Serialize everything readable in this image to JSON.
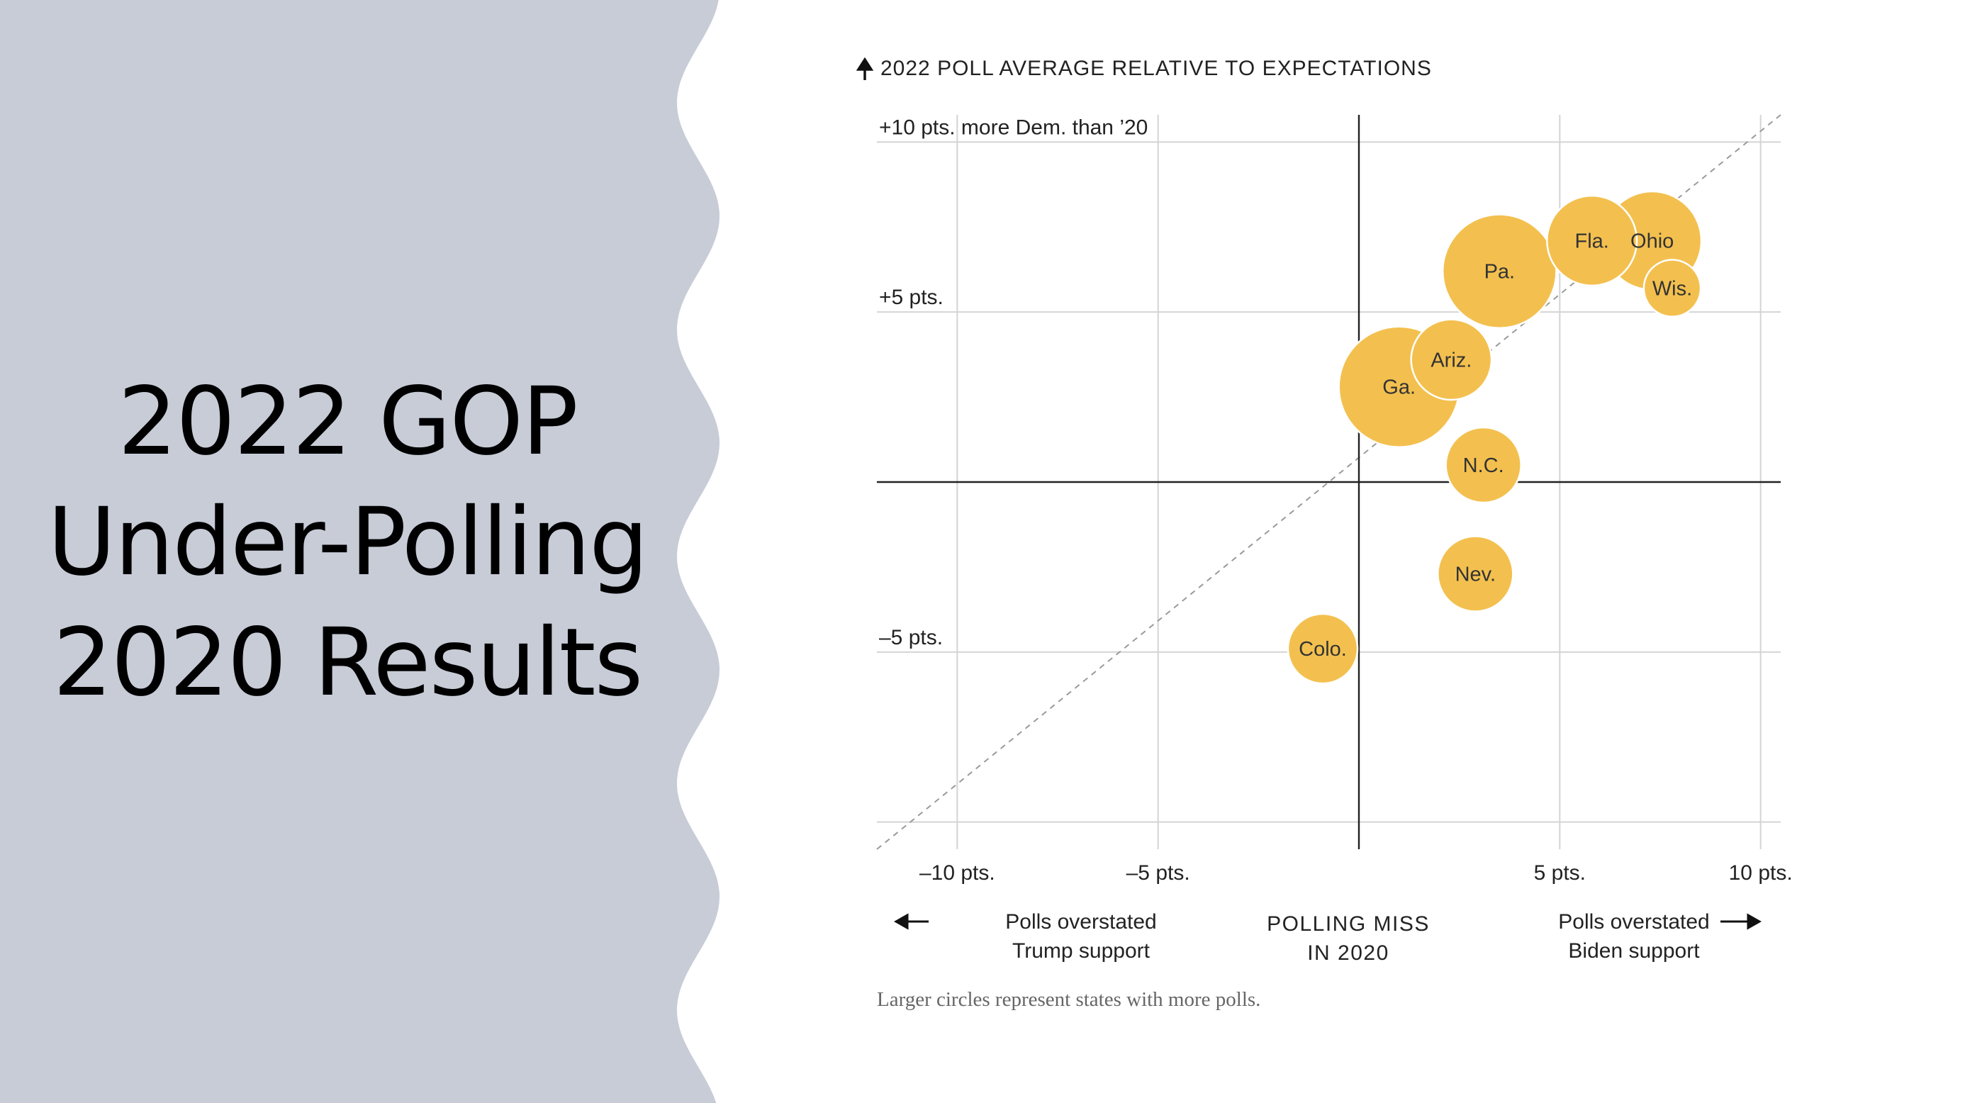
{
  "slide": {
    "title_lines": [
      "2022 GOP",
      "Under-Polling",
      "2020 Results"
    ],
    "panel_color": "#c7ccd7"
  },
  "chart_data": {
    "type": "scatter",
    "title": "2022 POLL AVERAGE RELATIVE TO EXPECTATIONS",
    "xlabel": "POLLING MISS IN 2020",
    "xlabel_lines": [
      "POLLING MISS",
      "IN 2020"
    ],
    "x_annotations": {
      "left": [
        "Polls overstated",
        "Trump support"
      ],
      "right": [
        "Polls overstated",
        "Biden support"
      ]
    },
    "xlim": [
      -12,
      10.5
    ],
    "ylim": [
      -10.8,
      10.8
    ],
    "x_ticks": [
      {
        "value": -10,
        "label": "–10 pts."
      },
      {
        "value": -5,
        "label": "–5 pts."
      },
      {
        "value": 5,
        "label": "5 pts."
      },
      {
        "value": 10,
        "label": "10 pts."
      }
    ],
    "y_ticks": [
      {
        "value": 10,
        "label": "+10 pts. more Dem. than ’20"
      },
      {
        "value": 5,
        "label": "+5 pts."
      },
      {
        "value": -5,
        "label": "–5 pts."
      },
      {
        "value": -10,
        "label": ""
      }
    ],
    "grid": true,
    "reference_line": "y = x",
    "bubble_color": "#f3c04f",
    "points": [
      {
        "label": "Ariz.",
        "x": 2.3,
        "y": 3.6,
        "size": 4
      },
      {
        "label": "Ga.",
        "x": 1.0,
        "y": 2.8,
        "size": 9
      },
      {
        "label": "Pa.",
        "x": 3.5,
        "y": 6.2,
        "size": 8
      },
      {
        "label": "Fla.",
        "x": 5.8,
        "y": 7.1,
        "size": 5
      },
      {
        "label": "Ohio",
        "x": 7.3,
        "y": 7.1,
        "size": 6
      },
      {
        "label": "Wis.",
        "x": 7.8,
        "y": 5.7,
        "size": 2
      },
      {
        "label": "N.C.",
        "x": 3.1,
        "y": 0.5,
        "size": 3.5
      },
      {
        "label": "Nev.",
        "x": 2.9,
        "y": -2.7,
        "size": 3.5
      },
      {
        "label": "Colo.",
        "x": -0.9,
        "y": -4.9,
        "size": 3
      }
    ],
    "note": "Larger circles represent states with more polls."
  }
}
